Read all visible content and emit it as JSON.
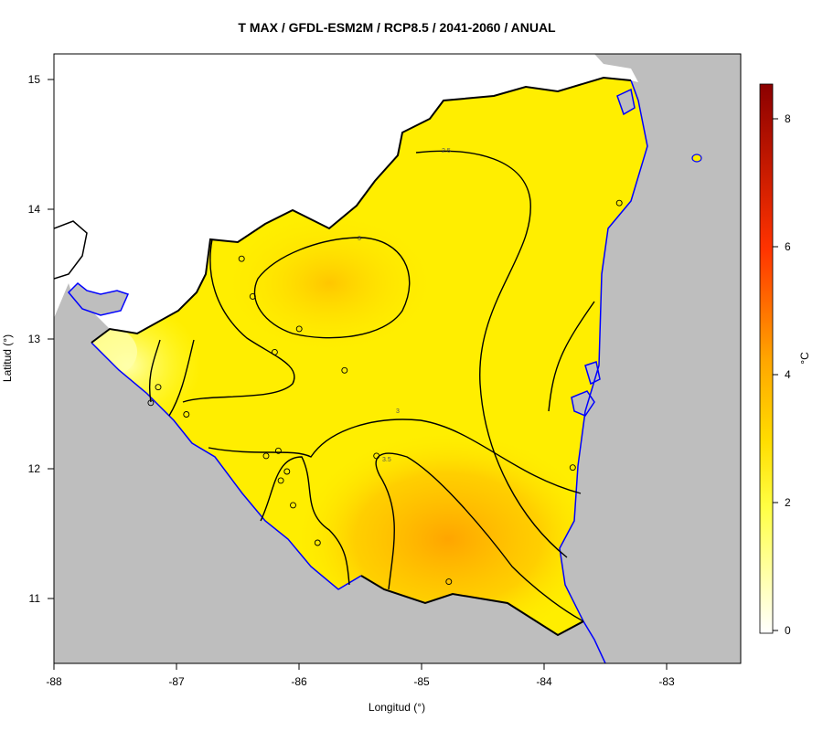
{
  "title": "T MAX / GFDL-ESM2M / RCP8.5 / 2041-2060 / ANUAL",
  "xlabel": "Longitud (°)",
  "ylabel": "Latitud (°)",
  "x_ticks": [
    "-88",
    "-87",
    "-86",
    "-85",
    "-84",
    "-83"
  ],
  "y_ticks": [
    "15",
    "14",
    "13",
    "12",
    "11"
  ],
  "colorbar": {
    "unit": "°C",
    "ticks": [
      "0",
      "2",
      "4",
      "6",
      "8"
    ],
    "range": [
      0,
      8.5
    ],
    "colors": [
      "#ffffff",
      "#ffff66",
      "#ffee00",
      "#ffa500",
      "#ff3300",
      "#8b0000"
    ]
  },
  "contour_labels": [
    "2.5",
    "3",
    "3",
    "3.5"
  ],
  "colors": {
    "ocean_land_outside": "#bebebe",
    "coast": "#0000ff",
    "border": "#000000",
    "field_base": "#ffee00",
    "field_hot": "#ffa500"
  },
  "chart_data": {
    "type": "heatmap",
    "variable": "T MAX",
    "model": "GFDL-ESM2M",
    "scenario": "RCP8.5",
    "period": "2041-2060",
    "season": "ANUAL",
    "xlim": [
      -88,
      -82.4
    ],
    "ylim": [
      10.5,
      15.2
    ],
    "contour_levels": [
      2.5,
      3,
      3.5
    ],
    "stations": [
      {
        "lon": -86.47,
        "lat": 13.62
      },
      {
        "lon": -86.38,
        "lat": 13.33
      },
      {
        "lon": -86.0,
        "lat": 13.08
      },
      {
        "lon": -86.2,
        "lat": 12.9
      },
      {
        "lon": -85.63,
        "lat": 12.76
      },
      {
        "lon": -87.15,
        "lat": 12.63
      },
      {
        "lon": -87.21,
        "lat": 12.51
      },
      {
        "lon": -86.92,
        "lat": 12.42
      },
      {
        "lon": -86.17,
        "lat": 12.14
      },
      {
        "lon": -86.27,
        "lat": 12.1
      },
      {
        "lon": -85.37,
        "lat": 12.1
      },
      {
        "lon": -86.1,
        "lat": 11.98
      },
      {
        "lon": -86.15,
        "lat": 11.91
      },
      {
        "lon": -86.05,
        "lat": 11.72
      },
      {
        "lon": -85.85,
        "lat": 11.43
      },
      {
        "lon": -84.78,
        "lat": 11.13
      },
      {
        "lon": -83.77,
        "lat": 12.01
      },
      {
        "lon": -83.39,
        "lat": 14.05
      }
    ]
  }
}
